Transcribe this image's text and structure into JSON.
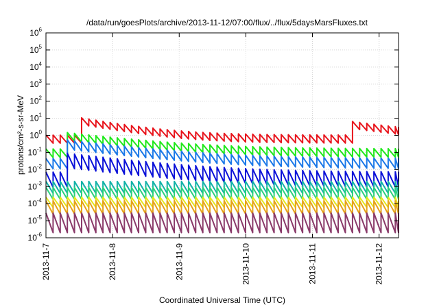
{
  "chart_data": {
    "type": "line",
    "title": "/data/run/goesPlots/archive/2013-11-12/07:00/flux/../flux/5daysMarsFluxes.txt",
    "xlabel": "Coordinated Universal Time (UTC)",
    "ylabel": "protons/cm²-s-sr-MeV",
    "y_scale": "log",
    "ylim": [
      1e-06,
      1000000.0
    ],
    "xlim": [
      "2013-11-07",
      "2013-11-12T07:00"
    ],
    "x_ticks": [
      "2013-11-7",
      "2013-11-8",
      "2013-11-9",
      "2013-11-10",
      "2013-11-11",
      "2013-11-12"
    ],
    "y_tick_exponents": [
      -6,
      -5,
      -4,
      -3,
      -2,
      -1,
      0,
      1,
      2,
      3,
      4,
      5,
      6
    ],
    "y_tick_base": "10",
    "grid": true,
    "series": [
      {
        "color": "#e8141c",
        "baseline": 0.6,
        "sawtooth_factor": 3.0,
        "spikes": [
          {
            "day": 0.45,
            "value": 7.0,
            "decay_days": 0.6
          },
          {
            "day": 4.55,
            "value": 4.0,
            "decay_days": 0.7
          }
        ]
      },
      {
        "color": "#1ee81a",
        "baseline": 0.09,
        "sawtooth_factor": 3.2,
        "spikes": [
          {
            "day": 0.22,
            "value": 0.9,
            "decay_days": 0.9
          }
        ]
      },
      {
        "color": "#1a78e8",
        "baseline": 0.022,
        "sawtooth_factor": 4.0,
        "spikes": [
          {
            "day": 0.22,
            "value": 0.3,
            "decay_days": 0.9
          }
        ]
      },
      {
        "color": "#0a10d8",
        "baseline": 0.0025,
        "sawtooth_factor": 8.0,
        "spikes": [
          {
            "day": 0.22,
            "value": 0.035,
            "decay_days": 0.9
          }
        ]
      },
      {
        "color": "#12b2a8",
        "baseline": 0.0009,
        "sawtooth_factor": 5.0,
        "spikes": []
      },
      {
        "color": "#2ad07a",
        "baseline": 0.0004,
        "sawtooth_factor": 5.0,
        "spikes": []
      },
      {
        "color": "#e6e61a",
        "baseline": 0.00012,
        "sawtooth_factor": 4.0,
        "spikes": []
      },
      {
        "color": "#e6a21a",
        "baseline": 6e-05,
        "sawtooth_factor": 6.0,
        "spikes": []
      },
      {
        "color": "#8a3a6a",
        "baseline": 7.5e-06,
        "sawtooth_factor": 14.0,
        "spikes": []
      }
    ],
    "sawtooth_period_days": 0.107
  }
}
